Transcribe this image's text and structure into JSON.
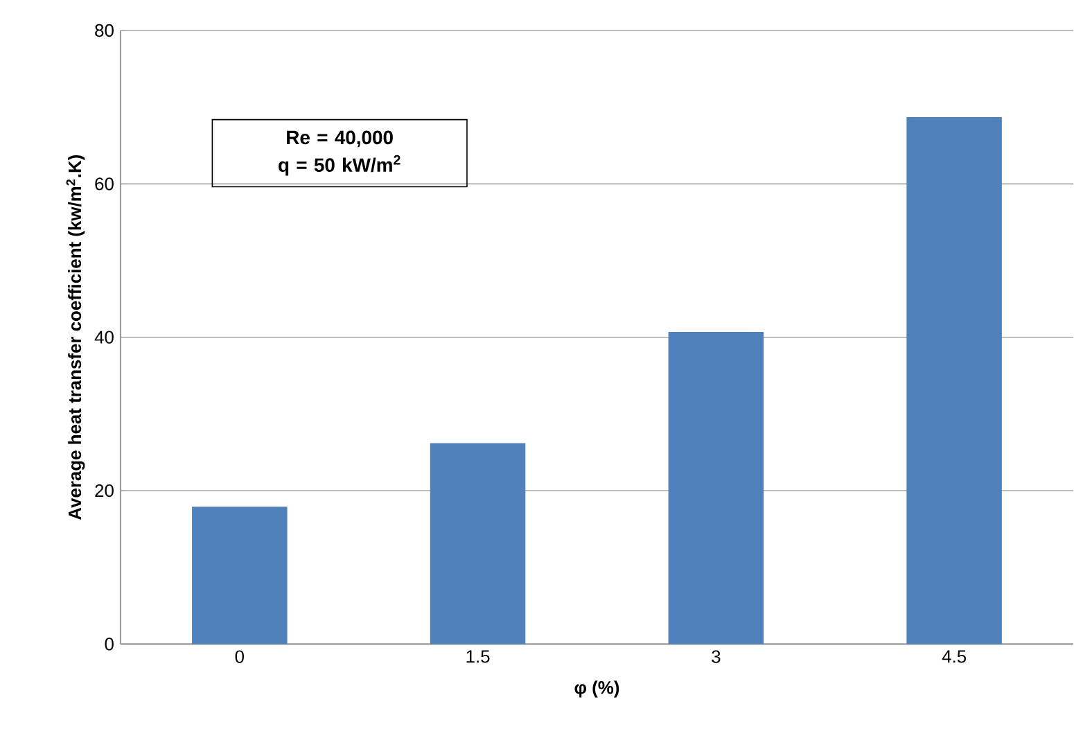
{
  "chart_data": {
    "type": "bar",
    "xlabel": "φ (%)",
    "ylabel": "Average heat transfer coefficient (kw/m$^{2}$.K)",
    "categories": [
      "0",
      "1.5",
      "3",
      "4.5"
    ],
    "values": [
      17.9,
      26.2,
      40.7,
      68.7
    ],
    "color": "#4f81bd",
    "ylim": [
      0,
      80
    ],
    "yticks": [
      0,
      20,
      40,
      60,
      80
    ],
    "grid": "y",
    "annotations": [
      "Re = 40,000",
      "q = 50 kW/m$^{2}$"
    ]
  }
}
